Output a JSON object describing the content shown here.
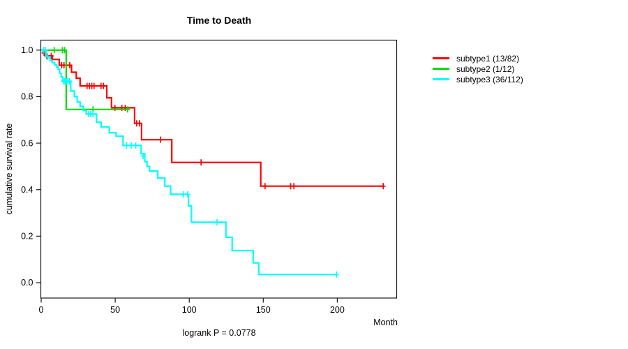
{
  "window": {
    "background": "#ffffff"
  },
  "chart_data": {
    "type": "line",
    "variant": "kaplan_meier_step",
    "title": "Time to Death",
    "xlabel": "Month",
    "ylabel": "cumulative survival rate",
    "footnote": "logrank P = 0.0778",
    "x_ticks": [
      "0",
      "50",
      "100",
      "150",
      "200"
    ],
    "y_ticks": [
      "1.0",
      "0.8",
      "0.6",
      "0.4",
      "0.2",
      "0.0"
    ],
    "xlim": [
      0,
      240
    ],
    "ylim": [
      0,
      1.04
    ],
    "grid": false,
    "legend_position": "right-outside",
    "axis_color": "#1a1a1a",
    "series": [
      {
        "name": "subtype1 (13/82)",
        "color": "#ff0000",
        "steps": [
          [
            0,
            1.0
          ],
          [
            1.5,
            0.988
          ],
          [
            3,
            0.975
          ],
          [
            7.5,
            0.96
          ],
          [
            12.2,
            0.935
          ],
          [
            20.5,
            0.905
          ],
          [
            23.7,
            0.879
          ],
          [
            26.3,
            0.846
          ],
          [
            44.3,
            0.795
          ],
          [
            47.5,
            0.752
          ],
          [
            63.1,
            0.685
          ],
          [
            67.8,
            0.615
          ],
          [
            88.2,
            0.517
          ],
          [
            148.3,
            0.415
          ]
        ],
        "end_month": 231,
        "censors": [
          [
            2,
            0.988
          ],
          [
            3.8,
            0.975
          ],
          [
            6.8,
            0.975
          ],
          [
            13.8,
            0.935
          ],
          [
            15.4,
            0.935
          ],
          [
            19.3,
            0.935
          ],
          [
            31,
            0.846
          ],
          [
            32.6,
            0.846
          ],
          [
            34.2,
            0.846
          ],
          [
            35.7,
            0.846
          ],
          [
            40.4,
            0.846
          ],
          [
            42,
            0.846
          ],
          [
            49.8,
            0.752
          ],
          [
            54.5,
            0.752
          ],
          [
            56.8,
            0.752
          ],
          [
            64.5,
            0.685
          ],
          [
            66.4,
            0.685
          ],
          [
            80.6,
            0.615
          ],
          [
            108,
            0.517
          ],
          [
            151.2,
            0.415
          ],
          [
            168.5,
            0.415
          ],
          [
            170.7,
            0.415
          ],
          [
            231,
            0.415
          ]
        ]
      },
      {
        "name": "subtype2 (1/12)",
        "color": "#00dd00",
        "steps": [
          [
            0,
            1.0
          ],
          [
            16.9,
            0.745
          ]
        ],
        "end_month": 59.2,
        "censors": [
          [
            8.8,
            1.0
          ],
          [
            14.3,
            1.0
          ],
          [
            15.8,
            1.0
          ],
          [
            35,
            0.745
          ],
          [
            58.4,
            0.745
          ]
        ]
      },
      {
        "name": "subtype3 (36/112)",
        "color": "#00ffff",
        "steps": [
          [
            0,
            1.0
          ],
          [
            3.3,
            0.971
          ],
          [
            6,
            0.955
          ],
          [
            7.5,
            0.946
          ],
          [
            9.1,
            0.936
          ],
          [
            10.5,
            0.927
          ],
          [
            11.5,
            0.918
          ],
          [
            12.5,
            0.9
          ],
          [
            13.5,
            0.885
          ],
          [
            14.4,
            0.866
          ],
          [
            20,
            0.824
          ],
          [
            22.4,
            0.8
          ],
          [
            24.3,
            0.777
          ],
          [
            26.3,
            0.758
          ],
          [
            28.5,
            0.74
          ],
          [
            30.4,
            0.725
          ],
          [
            37.4,
            0.69
          ],
          [
            40.5,
            0.67
          ],
          [
            46,
            0.645
          ],
          [
            50.6,
            0.63
          ],
          [
            55.3,
            0.59
          ],
          [
            67.5,
            0.555
          ],
          [
            70,
            0.52
          ],
          [
            71.5,
            0.5
          ],
          [
            73.2,
            0.48
          ],
          [
            78.8,
            0.45
          ],
          [
            83.5,
            0.415
          ],
          [
            87.4,
            0.38
          ],
          [
            99.5,
            0.33
          ],
          [
            101.5,
            0.26
          ],
          [
            124.8,
            0.195
          ],
          [
            129,
            0.138
          ],
          [
            143.2,
            0.085
          ],
          [
            147,
            0.035
          ]
        ],
        "end_month": 199.5,
        "censors": [
          [
            1.7,
            1.0
          ],
          [
            2.8,
            1.0
          ],
          [
            4.5,
            0.971
          ],
          [
            15,
            0.866
          ],
          [
            16,
            0.866
          ],
          [
            17,
            0.866
          ],
          [
            18,
            0.866
          ],
          [
            19.2,
            0.866
          ],
          [
            32,
            0.725
          ],
          [
            33.5,
            0.725
          ],
          [
            35,
            0.725
          ],
          [
            57.6,
            0.59
          ],
          [
            60.8,
            0.59
          ],
          [
            63.9,
            0.59
          ],
          [
            68.8,
            0.545
          ],
          [
            96,
            0.38
          ],
          [
            99,
            0.38
          ],
          [
            118.8,
            0.26
          ],
          [
            199.5,
            0.035
          ]
        ]
      }
    ]
  },
  "legend": {
    "items": [
      {
        "label": "subtype1 (13/82)",
        "color": "#ff0000"
      },
      {
        "label": "subtype2 (1/12)",
        "color": "#00dd00"
      },
      {
        "label": "subtype3 (36/112)",
        "color": "#00ffff"
      }
    ]
  }
}
